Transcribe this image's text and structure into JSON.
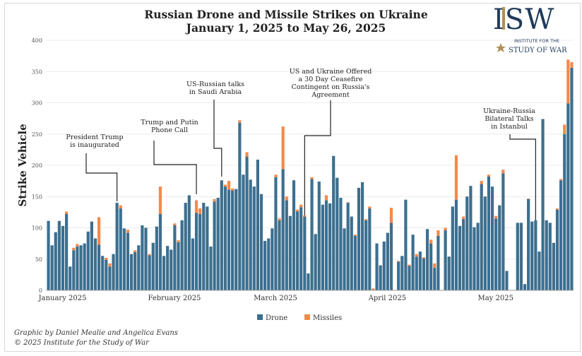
{
  "chart_data": {
    "type": "bar",
    "stacked": true,
    "title": "Russian Drone and Missile Strikes on Ukraine",
    "subtitle": "January 1, 2025 to May 26, 2025",
    "xlabel": "",
    "ylabel": "Strike Vehicle",
    "ylim": [
      0,
      400
    ],
    "yticks": [
      0,
      50,
      100,
      150,
      200,
      250,
      300,
      350,
      400
    ],
    "grid": true,
    "legend_position": "bottom",
    "month_labels": [
      {
        "label": "January 2025",
        "day_index": 1
      },
      {
        "label": "February 2025",
        "day_index": 32
      },
      {
        "label": "March 2025",
        "day_index": 60
      },
      {
        "label": "April 2025",
        "day_index": 91
      },
      {
        "label": "May 2025",
        "day_index": 121
      }
    ],
    "x_start": "2025-01-01",
    "x_end": "2025-05-26",
    "series": [
      {
        "name": "Drone",
        "color": "#3c6f8f",
        "values": [
          111,
          72,
          93,
          111,
          103,
          122,
          38,
          64,
          70,
          72,
          75,
          94,
          110,
          83,
          73,
          55,
          49,
          38,
          58,
          140,
          131,
          99,
          92,
          58,
          61,
          72,
          104,
          100,
          56,
          76,
          102,
          122,
          55,
          71,
          65,
          104,
          77,
          112,
          140,
          152,
          83,
          124,
          122,
          140,
          134,
          70,
          142,
          148,
          176,
          166,
          161,
          160,
          162,
          268,
          185,
          214,
          177,
          166,
          209,
          154,
          79,
          83,
          99,
          181,
          112,
          194,
          144,
          119,
          176,
          126,
          133,
          118,
          27,
          178,
          90,
          174,
          137,
          144,
          139,
          215,
          180,
          148,
          99,
          140,
          118,
          87,
          164,
          173,
          112,
          131,
          0,
          75,
          40,
          78,
          92,
          108,
          0,
          46,
          55,
          145,
          39,
          89,
          54,
          62,
          51,
          98,
          75,
          36,
          87,
          0,
          96,
          54,
          134,
          145,
          103,
          114,
          150,
          167,
          101,
          108,
          170,
          150,
          182,
          166,
          115,
          136,
          187,
          31,
          0,
          0,
          108,
          108,
          10,
          146,
          110,
          112,
          62,
          274,
          112,
          108,
          76,
          129,
          176,
          250,
          299,
          356
        ]
      },
      {
        "name": "Missiles",
        "color": "#f5894a",
        "values": [
          0,
          0,
          0,
          0,
          0,
          4,
          0,
          4,
          4,
          0,
          0,
          0,
          0,
          0,
          44,
          0,
          3,
          5,
          0,
          0,
          5,
          0,
          5,
          0,
          3,
          0,
          0,
          0,
          2,
          0,
          0,
          44,
          0,
          0,
          0,
          3,
          3,
          0,
          0,
          0,
          0,
          20,
          9,
          0,
          0,
          0,
          4,
          0,
          0,
          3,
          14,
          3,
          0,
          4,
          0,
          7,
          0,
          0,
          0,
          0,
          0,
          0,
          0,
          4,
          3,
          68,
          6,
          0,
          0,
          3,
          4,
          2,
          0,
          3,
          0,
          0,
          0,
          8,
          0,
          0,
          0,
          0,
          0,
          1,
          0,
          2,
          0,
          0,
          2,
          3,
          3,
          0,
          0,
          0,
          0,
          24,
          0,
          1,
          0,
          0,
          2,
          0,
          4,
          0,
          2,
          0,
          6,
          7,
          9,
          0,
          4,
          0,
          0,
          71,
          0,
          4,
          0,
          0,
          0,
          0,
          5,
          0,
          3,
          0,
          4,
          0,
          6,
          0,
          0,
          0,
          0,
          0,
          0,
          1,
          0,
          0,
          0,
          0,
          0,
          0,
          0,
          2,
          2,
          15,
          70,
          9
        ]
      }
    ],
    "annotations": [
      {
        "lines": [
          "President Trump",
          "is inaugurated"
        ],
        "day_index": 20
      },
      {
        "lines": [
          "Trump and Putin",
          "Phone Call"
        ],
        "day_index": 42
      },
      {
        "lines": [
          "US-Russian talks",
          "in Saudi Arabia"
        ],
        "day_index": 49
      },
      {
        "lines": [
          "US and Ukraine Offered",
          "a 30 Day Ceasefire",
          "Contingent on Russia's",
          "Agreement"
        ],
        "day_index": 72
      },
      {
        "lines": [
          "Ukraine-Russia",
          "Bilateral Talks",
          "in Istanbul"
        ],
        "day_index": 136
      }
    ]
  },
  "logo": {
    "letters": "ISW",
    "line1": "INSTITUTE FOR THE",
    "line2": "STUDY OF WAR",
    "color": "#1f3b5a",
    "accent": "#b08d57"
  },
  "footer": {
    "credit": "Graphic by Daniel Mealie and Angelica Evans",
    "copyright": "© 2025 Institute for the Study of War"
  }
}
